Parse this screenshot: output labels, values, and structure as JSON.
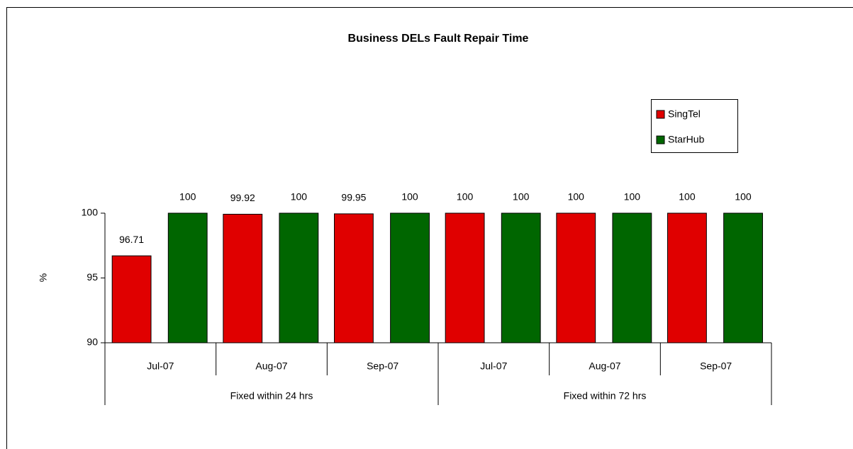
{
  "chart_data": {
    "type": "bar",
    "title": "Business DELs Fault Repair Time",
    "y_label": "%",
    "categories": [
      "Jul-07",
      "Aug-07",
      "Sep-07",
      "Jul-07",
      "Aug-07",
      "Sep-07"
    ],
    "groups": [
      "Fixed within 24 hrs",
      "Fixed within 72 hrs"
    ],
    "series": [
      {
        "name": "SingTel",
        "color": "#e00000",
        "values": [
          96.71,
          99.92,
          99.95,
          100,
          100,
          100
        ]
      },
      {
        "name": "StarHub",
        "color": "#006600",
        "values": [
          100,
          100,
          100,
          100,
          100,
          100
        ]
      }
    ],
    "ylim": [
      90,
      100
    ],
    "yticks": [
      90,
      95,
      100
    ],
    "legend": "upper right"
  }
}
